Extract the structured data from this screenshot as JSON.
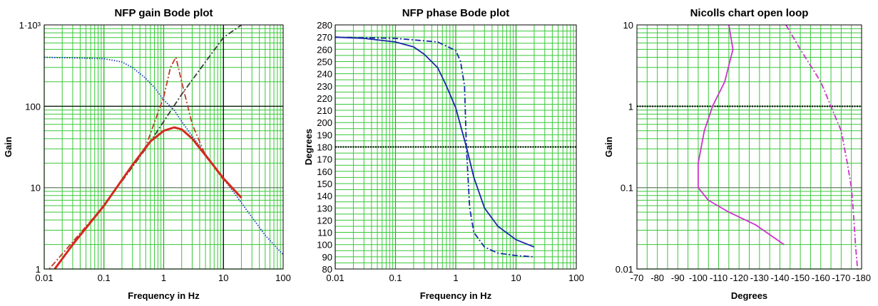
{
  "chart_data": [
    {
      "type": "line",
      "title": "NFP gain Bode plot",
      "xlabel": "Frequency in Hz",
      "ylabel": "Gain",
      "xscale": "log",
      "yscale": "log",
      "xlim": [
        0.01,
        100
      ],
      "ylim": [
        1,
        1000
      ],
      "x_tick_labels": [
        "0.01",
        "0.1",
        "1",
        "10",
        "100"
      ],
      "y_tick_labels": [
        "1",
        "10",
        "100",
        "1·10³"
      ],
      "grid": true,
      "reference_lines": [
        {
          "axis": "y",
          "value": 100,
          "color": "#000000"
        },
        {
          "axis": "y",
          "value": 10,
          "color": "#808080"
        },
        {
          "axis": "x",
          "value": 10,
          "color": "#000000"
        }
      ],
      "series": [
        {
          "style": "dotted",
          "color": "#1f3fbf",
          "x": [
            0.01,
            0.1,
            0.2,
            0.3,
            0.5,
            0.7,
            1,
            1.5,
            2,
            3,
            5,
            10,
            20,
            50,
            100
          ],
          "y": [
            400,
            385,
            350,
            300,
            220,
            170,
            120,
            90,
            65,
            43,
            26,
            13,
            6.5,
            2.6,
            1.5
          ]
        },
        {
          "style": "dash-dot",
          "color": "#3a3a3a",
          "x": [
            0.2,
            0.5,
            1,
            2,
            5,
            10,
            20
          ],
          "y": [
            12,
            30,
            65,
            140,
            350,
            700,
            1000
          ]
        },
        {
          "style": "dash-dot",
          "color": "#c0392b",
          "x": [
            0.01,
            0.1,
            0.5,
            1,
            1.3,
            1.6,
            2,
            3,
            5,
            10,
            20
          ],
          "y": [
            0.85,
            6,
            32,
            130,
            300,
            400,
            200,
            60,
            25,
            12.5,
            7.5
          ]
        },
        {
          "style": "solid",
          "color": "#d42a1e",
          "x": [
            0.015,
            0.03,
            0.1,
            0.3,
            0.6,
            1,
            1.5,
            2,
            3,
            5,
            10,
            20
          ],
          "y": [
            1,
            2,
            6,
            19,
            37,
            50,
            55,
            52,
            40,
            25,
            13,
            7.5
          ]
        }
      ]
    },
    {
      "type": "line",
      "title": "NFP phase Bode plot",
      "xlabel": "Frequency in Hz",
      "ylabel": "Degrees",
      "xscale": "log",
      "yscale": "linear",
      "xlim": [
        0.01,
        100
      ],
      "ylim": [
        80,
        280
      ],
      "x_tick_labels": [
        "0.01",
        "0.1",
        "1",
        "10",
        "100"
      ],
      "y_ticks": [
        80,
        90,
        100,
        110,
        120,
        130,
        140,
        150,
        160,
        170,
        180,
        190,
        200,
        210,
        220,
        230,
        240,
        250,
        260,
        270,
        280
      ],
      "grid": true,
      "reference_lines": [
        {
          "axis": "y",
          "value": 180,
          "color": "#000000",
          "style": "dotted"
        }
      ],
      "series": [
        {
          "style": "dash-dot",
          "color": "#1a28a8",
          "x": [
            0.01,
            0.1,
            0.5,
            1,
            1.2,
            1.4,
            1.5,
            1.7,
            2,
            3,
            5,
            10,
            20
          ],
          "y": [
            270,
            269,
            266,
            259,
            250,
            230,
            180,
            130,
            110,
            98,
            93,
            91,
            90
          ]
        },
        {
          "style": "solid",
          "color": "#1a28a8",
          "x": [
            0.01,
            0.03,
            0.1,
            0.2,
            0.3,
            0.5,
            0.7,
            1,
            1.5,
            2,
            3,
            5,
            10,
            20
          ],
          "y": [
            270,
            269,
            266,
            262,
            256,
            245,
            230,
            212,
            180,
            155,
            130,
            115,
            104,
            98
          ]
        }
      ]
    },
    {
      "type": "line",
      "title": "Nicolls chart open loop",
      "xlabel": "Degrees",
      "ylabel": "Gain",
      "xscale": "linear",
      "yscale": "log",
      "xlim": [
        -70,
        -180
      ],
      "ylim": [
        0.01,
        10
      ],
      "x_ticks": [
        -70,
        -80,
        -90,
        -100,
        -110,
        -120,
        -130,
        -140,
        -150,
        -160,
        -170,
        -180
      ],
      "y_tick_labels": [
        "0.01",
        "0.1",
        "1",
        "10"
      ],
      "grid": true,
      "reference_lines": [
        {
          "axis": "y",
          "value": 1,
          "color": "#000000",
          "style": "dotted"
        },
        {
          "axis": "y",
          "value": 0.1,
          "color": "#808080"
        }
      ],
      "series": [
        {
          "style": "solid",
          "color": "#cc33cc",
          "x": [
            -115,
            -117,
            -113,
            -107,
            -103,
            -100,
            -100,
            -105,
            -115,
            -128,
            -142
          ],
          "y": [
            10,
            5,
            2,
            1,
            0.5,
            0.2,
            0.1,
            0.07,
            0.05,
            0.035,
            0.02
          ]
        },
        {
          "style": "dash-dot",
          "color": "#cc33cc",
          "x": [
            -143,
            -150,
            -160,
            -165,
            -170,
            -173,
            -175,
            -176,
            -177,
            -178
          ],
          "y": [
            10,
            5,
            2,
            1,
            0.5,
            0.2,
            0.1,
            0.05,
            0.02,
            0.01
          ]
        }
      ]
    }
  ]
}
